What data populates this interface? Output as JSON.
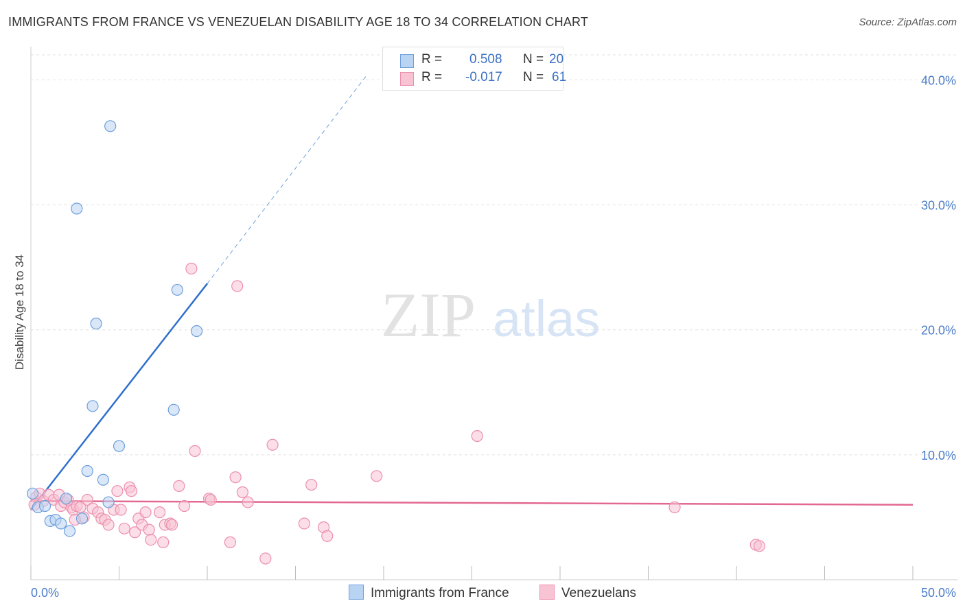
{
  "title": "IMMIGRANTS FROM FRANCE VS VENEZUELAN DISABILITY AGE 18 TO 34 CORRELATION CHART",
  "source": "Source: ZipAtlas.com",
  "watermark": {
    "zip": "ZIP",
    "atlas": "atlas"
  },
  "legend": {
    "series1": {
      "r_label": "R =",
      "r_value": "0.508",
      "n_label": "N =",
      "n_value": "20"
    },
    "series2": {
      "r_label": "R =",
      "r_value": "-0.017",
      "n_label": "N =",
      "n_value": "61"
    }
  },
  "colors": {
    "blue_fill": "#b9d3f3",
    "blue_stroke": "#6f9fdb",
    "blue_line": "#2f6fcc",
    "pink_fill": "#f8c3d3",
    "pink_stroke": "#ec8fae",
    "pink_line": "#e2688f",
    "grid": "#e2e2e2",
    "tick_text": "#4a7cc7"
  },
  "chart_data": {
    "type": "scatter",
    "title": "IMMIGRANTS FROM FRANCE VS VENEZUELAN DISABILITY AGE 18 TO 34 CORRELATION CHART",
    "xlabel": "",
    "ylabel": "Disability Age 18 to 34",
    "xlim": [
      0,
      50
    ],
    "ylim": [
      0,
      42
    ],
    "x_tick_labels": [
      "0.0%",
      "50.0%"
    ],
    "y_ticks": [
      10,
      20,
      30,
      40
    ],
    "y_tick_labels": [
      "10.0%",
      "20.0%",
      "30.0%",
      "40.0%"
    ],
    "series": [
      {
        "name": "Immigrants from France",
        "color": "#b9d3f3",
        "points": [
          [
            0.1,
            6.9
          ],
          [
            0.4,
            5.8
          ],
          [
            0.8,
            5.9
          ],
          [
            1.1,
            4.7
          ],
          [
            1.4,
            4.8
          ],
          [
            1.7,
            4.5
          ],
          [
            2.0,
            6.5
          ],
          [
            2.2,
            3.9
          ],
          [
            2.9,
            4.9
          ],
          [
            3.2,
            8.7
          ],
          [
            3.5,
            13.9
          ],
          [
            3.7,
            20.5
          ],
          [
            4.1,
            8.0
          ],
          [
            4.4,
            6.2
          ],
          [
            4.5,
            36.3
          ],
          [
            5.0,
            10.7
          ],
          [
            8.1,
            13.6
          ],
          [
            8.3,
            23.2
          ],
          [
            9.4,
            19.9
          ],
          [
            2.6,
            29.7
          ]
        ],
        "trend": {
          "x": [
            0.0,
            10.0
          ],
          "y": [
            5.6,
            23.7
          ],
          "extended_x": [
            10.0,
            19.0
          ],
          "extended_y": [
            23.7,
            40.3
          ]
        }
      },
      {
        "name": "Venezuelans",
        "color": "#f8c3d3",
        "points": [
          [
            0.3,
            6.6
          ],
          [
            0.5,
            6.9
          ],
          [
            0.7,
            6.3
          ],
          [
            1.0,
            6.8
          ],
          [
            1.3,
            6.4
          ],
          [
            1.6,
            6.8
          ],
          [
            1.7,
            5.9
          ],
          [
            1.9,
            6.2
          ],
          [
            2.1,
            6.4
          ],
          [
            2.3,
            5.8
          ],
          [
            2.4,
            5.6
          ],
          [
            2.6,
            5.9
          ],
          [
            2.8,
            5.8
          ],
          [
            3.0,
            5.0
          ],
          [
            3.2,
            6.4
          ],
          [
            3.5,
            5.7
          ],
          [
            3.8,
            5.4
          ],
          [
            4.0,
            4.9
          ],
          [
            4.2,
            4.8
          ],
          [
            4.4,
            4.4
          ],
          [
            4.7,
            5.6
          ],
          [
            4.9,
            7.1
          ],
          [
            5.1,
            5.6
          ],
          [
            5.3,
            4.1
          ],
          [
            5.6,
            7.4
          ],
          [
            5.7,
            7.1
          ],
          [
            5.9,
            3.8
          ],
          [
            6.1,
            4.9
          ],
          [
            6.3,
            4.4
          ],
          [
            6.5,
            5.4
          ],
          [
            6.7,
            4.0
          ],
          [
            6.8,
            3.2
          ],
          [
            7.3,
            5.4
          ],
          [
            7.5,
            3.0
          ],
          [
            7.6,
            4.4
          ],
          [
            7.9,
            4.5
          ],
          [
            8.0,
            4.4
          ],
          [
            8.4,
            7.5
          ],
          [
            8.7,
            5.9
          ],
          [
            9.1,
            24.9
          ],
          [
            9.3,
            10.3
          ],
          [
            10.1,
            6.5
          ],
          [
            10.2,
            6.4
          ],
          [
            11.3,
            3.0
          ],
          [
            11.6,
            8.2
          ],
          [
            11.7,
            23.5
          ],
          [
            12.0,
            7.0
          ],
          [
            12.3,
            6.2
          ],
          [
            13.3,
            1.7
          ],
          [
            13.7,
            10.8
          ],
          [
            15.5,
            4.5
          ],
          [
            15.9,
            7.6
          ],
          [
            16.6,
            4.2
          ],
          [
            16.8,
            3.5
          ],
          [
            19.6,
            8.3
          ],
          [
            25.3,
            11.5
          ],
          [
            36.5,
            5.8
          ],
          [
            41.1,
            2.8
          ],
          [
            41.3,
            2.7
          ],
          [
            0.2,
            6.0
          ],
          [
            2.5,
            4.8
          ]
        ],
        "trend": {
          "x": [
            0.0,
            50.0
          ],
          "y": [
            6.3,
            6.0
          ]
        }
      }
    ],
    "legend_labels": [
      "Immigrants from France",
      "Venezuelans"
    ]
  }
}
